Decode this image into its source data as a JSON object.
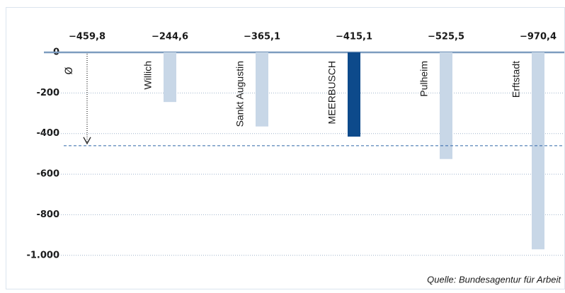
{
  "chart_data": {
    "type": "bar",
    "categories": [
      "Willich",
      "Sankt Augustin",
      "MEERBUSCH",
      "Pulheim",
      "Erftstadt"
    ],
    "values": [
      -244.6,
      -365.1,
      -415.1,
      -525.5,
      -970.4
    ],
    "value_labels": [
      "−244,6",
      "−365,1",
      "−415,1",
      "−525,5",
      "−970,4"
    ],
    "colors": [
      "#c8d7e7",
      "#c8d7e7",
      "#0d4a8b",
      "#c8d7e7",
      "#c8d7e7"
    ],
    "average": {
      "label": "Ø",
      "value": -459.8,
      "value_label": "−459,8"
    },
    "ylim": [
      -1060,
      0
    ],
    "yticks": [
      0,
      -200,
      -400,
      -600,
      -800,
      {
        "value": -1000,
        "label": "-1.000"
      }
    ],
    "grid": true,
    "source": "Quelle: Bundesagentur für Arbeit"
  }
}
